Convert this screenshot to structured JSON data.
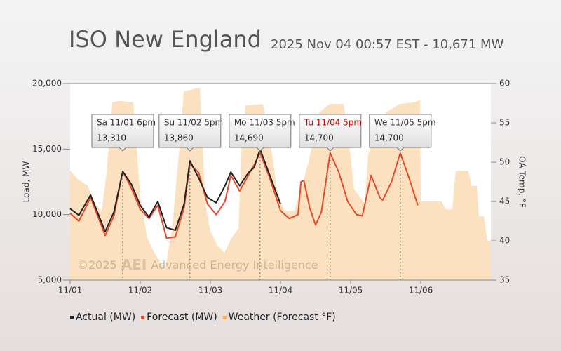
{
  "chart_data": {
    "type": "line",
    "title": "ISO New England",
    "subtitle": "2025 Nov 04 00:57 EST - 10,671 MW",
    "ylabel": "Load, MW",
    "y2label": "OA Temp, °F",
    "xlim": [
      0,
      144
    ],
    "xticks": [
      {
        "value": 0,
        "label": "11/01"
      },
      {
        "value": 24,
        "label": "11/02"
      },
      {
        "value": 48,
        "label": "11/03"
      },
      {
        "value": 72,
        "label": "11/04"
      },
      {
        "value": 96,
        "label": "11/05"
      },
      {
        "value": 120,
        "label": "11/06"
      }
    ],
    "ylim": [
      5000,
      20000
    ],
    "yticks": [
      {
        "value": 5000,
        "label": "5,000"
      },
      {
        "value": 10000,
        "label": "10,000"
      },
      {
        "value": 15000,
        "label": "15,000"
      },
      {
        "value": 20000,
        "label": "20,000"
      }
    ],
    "y2lim": [
      35,
      60
    ],
    "y2ticks": [
      35,
      40,
      45,
      50,
      55,
      60
    ],
    "series": [
      {
        "name": "Weather (Forecast °F)",
        "type": "area",
        "axis": "y2",
        "color": "#f7a94b",
        "x": [
          0,
          2.4,
          6,
          8.4,
          10.8,
          12.5,
          14.4,
          16.8,
          21.6,
          24,
          26.4,
          28.8,
          32.4,
          34.8,
          37.2,
          38.9,
          44.4,
          46.3,
          48,
          50.4,
          52.8,
          55.2,
          57.6,
          58.8,
          60,
          66,
          68.4,
          70.8,
          73.2,
          76.8,
          81.6,
          85.2,
          88.8,
          93.6,
          94.8,
          97.2,
          100.8,
          102,
          108,
          112.8,
          117.6,
          119.8,
          120,
          127.2,
          128.4,
          130.8,
          131.5,
          132,
          136.3,
          137.3,
          139.2,
          139.9,
          141.6,
          142.8,
          144
        ],
        "values": [
          48.9,
          47.9,
          47,
          44.7,
          43.8,
          48.7,
          57.6,
          57.8,
          57.6,
          45.6,
          40.3,
          38.5,
          36.3,
          41.2,
          51,
          59,
          59.5,
          44.7,
          41.2,
          39.4,
          38.5,
          40.3,
          41.6,
          52.8,
          57.2,
          57.4,
          52.8,
          46.6,
          43.8,
          43.8,
          50,
          56.3,
          57.4,
          57.4,
          54.6,
          46.6,
          44.7,
          51,
          56.3,
          57.4,
          57.6,
          57.9,
          45,
          45,
          44,
          44,
          47,
          48.9,
          48.9,
          47,
          47,
          43.1,
          43.1,
          40,
          40
        ]
      },
      {
        "name": "Forecast (MW)",
        "type": "line",
        "color": "#e8492a",
        "x": [
          0,
          3,
          7,
          12,
          15,
          18,
          21,
          24,
          27,
          30,
          33,
          36,
          39,
          41,
          44,
          47,
          50,
          53,
          55,
          58,
          61,
          63,
          65,
          68,
          72,
          75,
          78,
          79,
          80,
          82,
          84,
          86,
          89,
          92,
          95,
          98,
          100,
          103,
          106,
          107,
          110,
          113,
          116,
          119
        ],
        "values": [
          10100,
          9500,
          11300,
          8400,
          9900,
          13310,
          12000,
          10400,
          9700,
          10700,
          8200,
          8300,
          10500,
          13860,
          13200,
          10800,
          10000,
          11000,
          13000,
          11800,
          13000,
          13800,
          14690,
          13000,
          10300,
          9700,
          10000,
          12500,
          12600,
          10500,
          9200,
          10200,
          14700,
          13200,
          11000,
          10000,
          9900,
          13000,
          11300,
          11100,
          12500,
          14700,
          12800,
          10700
        ]
      },
      {
        "name": "Actual (MW)",
        "type": "line",
        "color": "#222222",
        "x": [
          0,
          3,
          7,
          12,
          15,
          18,
          21,
          24,
          27,
          30,
          33,
          36,
          39,
          41,
          44,
          47,
          50,
          53,
          55,
          58,
          61,
          63,
          65,
          68,
          72
        ],
        "values": [
          10450,
          9950,
          11500,
          8700,
          10200,
          13300,
          12300,
          10700,
          9800,
          11000,
          9000,
          8800,
          10800,
          14100,
          12800,
          11300,
          10900,
          12200,
          13250,
          12200,
          13200,
          13600,
          15000,
          13200,
          10800
        ]
      }
    ],
    "legend_order": [
      2,
      1,
      0
    ],
    "callouts": [
      {
        "x": 18,
        "time": "Sa 11/01 6pm",
        "value": 13310,
        "value_label": "13,310",
        "time_color": "#333333"
      },
      {
        "x": 41,
        "time": "Su 11/02 5pm",
        "value": 13860,
        "value_label": "13,860",
        "time_color": "#333333"
      },
      {
        "x": 65,
        "time": "Mo 11/03 5pm",
        "value": 14690,
        "value_label": "14,690",
        "time_color": "#333333"
      },
      {
        "x": 89,
        "time": "Tu 11/04 5pm",
        "value": 14700,
        "value_label": "14,700",
        "time_color": "#cc0000"
      },
      {
        "x": 113,
        "time": "We 11/05 5pm",
        "value": 14700,
        "value_label": "14,700",
        "time_color": "#333333"
      }
    ],
    "credits": {
      "year": "©2025",
      "logo": "AEI",
      "text": "Advanced Energy Intelligence"
    }
  }
}
